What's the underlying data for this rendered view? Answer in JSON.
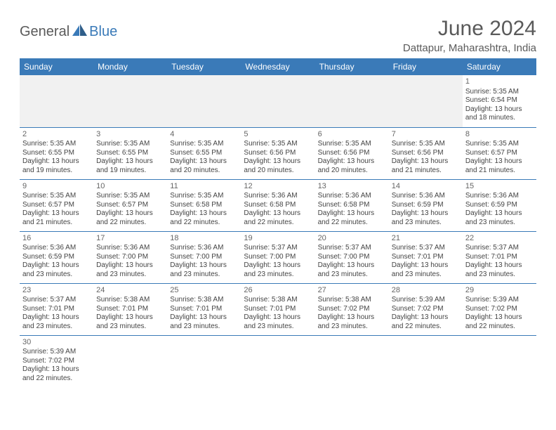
{
  "brand": {
    "text1": "General",
    "text2": "Blue"
  },
  "title": "June 2024",
  "location": "Dattapur, Maharashtra, India",
  "colors": {
    "header_bg": "#3a7ab8",
    "header_fg": "#ffffff",
    "text": "#444444",
    "title_color": "#5a5a5a",
    "row_border": "#3a7ab8",
    "blank_bg": "#f1f1f1",
    "page_bg": "#ffffff"
  },
  "typography": {
    "title_fontsize": 30,
    "location_fontsize": 15,
    "dayheader_fontsize": 12,
    "cell_fontsize": 10
  },
  "day_headers": [
    "Sunday",
    "Monday",
    "Tuesday",
    "Wednesday",
    "Thursday",
    "Friday",
    "Saturday"
  ],
  "weeks": [
    [
      null,
      null,
      null,
      null,
      null,
      null,
      {
        "n": "1",
        "sr": "Sunrise: 5:35 AM",
        "ss": "Sunset: 6:54 PM",
        "d1": "Daylight: 13 hours",
        "d2": "and 18 minutes."
      }
    ],
    [
      {
        "n": "2",
        "sr": "Sunrise: 5:35 AM",
        "ss": "Sunset: 6:55 PM",
        "d1": "Daylight: 13 hours",
        "d2": "and 19 minutes."
      },
      {
        "n": "3",
        "sr": "Sunrise: 5:35 AM",
        "ss": "Sunset: 6:55 PM",
        "d1": "Daylight: 13 hours",
        "d2": "and 19 minutes."
      },
      {
        "n": "4",
        "sr": "Sunrise: 5:35 AM",
        "ss": "Sunset: 6:55 PM",
        "d1": "Daylight: 13 hours",
        "d2": "and 20 minutes."
      },
      {
        "n": "5",
        "sr": "Sunrise: 5:35 AM",
        "ss": "Sunset: 6:56 PM",
        "d1": "Daylight: 13 hours",
        "d2": "and 20 minutes."
      },
      {
        "n": "6",
        "sr": "Sunrise: 5:35 AM",
        "ss": "Sunset: 6:56 PM",
        "d1": "Daylight: 13 hours",
        "d2": "and 20 minutes."
      },
      {
        "n": "7",
        "sr": "Sunrise: 5:35 AM",
        "ss": "Sunset: 6:56 PM",
        "d1": "Daylight: 13 hours",
        "d2": "and 21 minutes."
      },
      {
        "n": "8",
        "sr": "Sunrise: 5:35 AM",
        "ss": "Sunset: 6:57 PM",
        "d1": "Daylight: 13 hours",
        "d2": "and 21 minutes."
      }
    ],
    [
      {
        "n": "9",
        "sr": "Sunrise: 5:35 AM",
        "ss": "Sunset: 6:57 PM",
        "d1": "Daylight: 13 hours",
        "d2": "and 21 minutes."
      },
      {
        "n": "10",
        "sr": "Sunrise: 5:35 AM",
        "ss": "Sunset: 6:57 PM",
        "d1": "Daylight: 13 hours",
        "d2": "and 22 minutes."
      },
      {
        "n": "11",
        "sr": "Sunrise: 5:35 AM",
        "ss": "Sunset: 6:58 PM",
        "d1": "Daylight: 13 hours",
        "d2": "and 22 minutes."
      },
      {
        "n": "12",
        "sr": "Sunrise: 5:36 AM",
        "ss": "Sunset: 6:58 PM",
        "d1": "Daylight: 13 hours",
        "d2": "and 22 minutes."
      },
      {
        "n": "13",
        "sr": "Sunrise: 5:36 AM",
        "ss": "Sunset: 6:58 PM",
        "d1": "Daylight: 13 hours",
        "d2": "and 22 minutes."
      },
      {
        "n": "14",
        "sr": "Sunrise: 5:36 AM",
        "ss": "Sunset: 6:59 PM",
        "d1": "Daylight: 13 hours",
        "d2": "and 23 minutes."
      },
      {
        "n": "15",
        "sr": "Sunrise: 5:36 AM",
        "ss": "Sunset: 6:59 PM",
        "d1": "Daylight: 13 hours",
        "d2": "and 23 minutes."
      }
    ],
    [
      {
        "n": "16",
        "sr": "Sunrise: 5:36 AM",
        "ss": "Sunset: 6:59 PM",
        "d1": "Daylight: 13 hours",
        "d2": "and 23 minutes."
      },
      {
        "n": "17",
        "sr": "Sunrise: 5:36 AM",
        "ss": "Sunset: 7:00 PM",
        "d1": "Daylight: 13 hours",
        "d2": "and 23 minutes."
      },
      {
        "n": "18",
        "sr": "Sunrise: 5:36 AM",
        "ss": "Sunset: 7:00 PM",
        "d1": "Daylight: 13 hours",
        "d2": "and 23 minutes."
      },
      {
        "n": "19",
        "sr": "Sunrise: 5:37 AM",
        "ss": "Sunset: 7:00 PM",
        "d1": "Daylight: 13 hours",
        "d2": "and 23 minutes."
      },
      {
        "n": "20",
        "sr": "Sunrise: 5:37 AM",
        "ss": "Sunset: 7:00 PM",
        "d1": "Daylight: 13 hours",
        "d2": "and 23 minutes."
      },
      {
        "n": "21",
        "sr": "Sunrise: 5:37 AM",
        "ss": "Sunset: 7:01 PM",
        "d1": "Daylight: 13 hours",
        "d2": "and 23 minutes."
      },
      {
        "n": "22",
        "sr": "Sunrise: 5:37 AM",
        "ss": "Sunset: 7:01 PM",
        "d1": "Daylight: 13 hours",
        "d2": "and 23 minutes."
      }
    ],
    [
      {
        "n": "23",
        "sr": "Sunrise: 5:37 AM",
        "ss": "Sunset: 7:01 PM",
        "d1": "Daylight: 13 hours",
        "d2": "and 23 minutes."
      },
      {
        "n": "24",
        "sr": "Sunrise: 5:38 AM",
        "ss": "Sunset: 7:01 PM",
        "d1": "Daylight: 13 hours",
        "d2": "and 23 minutes."
      },
      {
        "n": "25",
        "sr": "Sunrise: 5:38 AM",
        "ss": "Sunset: 7:01 PM",
        "d1": "Daylight: 13 hours",
        "d2": "and 23 minutes."
      },
      {
        "n": "26",
        "sr": "Sunrise: 5:38 AM",
        "ss": "Sunset: 7:01 PM",
        "d1": "Daylight: 13 hours",
        "d2": "and 23 minutes."
      },
      {
        "n": "27",
        "sr": "Sunrise: 5:38 AM",
        "ss": "Sunset: 7:02 PM",
        "d1": "Daylight: 13 hours",
        "d2": "and 23 minutes."
      },
      {
        "n": "28",
        "sr": "Sunrise: 5:39 AM",
        "ss": "Sunset: 7:02 PM",
        "d1": "Daylight: 13 hours",
        "d2": "and 22 minutes."
      },
      {
        "n": "29",
        "sr": "Sunrise: 5:39 AM",
        "ss": "Sunset: 7:02 PM",
        "d1": "Daylight: 13 hours",
        "d2": "and 22 minutes."
      }
    ],
    [
      {
        "n": "30",
        "sr": "Sunrise: 5:39 AM",
        "ss": "Sunset: 7:02 PM",
        "d1": "Daylight: 13 hours",
        "d2": "and 22 minutes."
      },
      null,
      null,
      null,
      null,
      null,
      null
    ]
  ]
}
